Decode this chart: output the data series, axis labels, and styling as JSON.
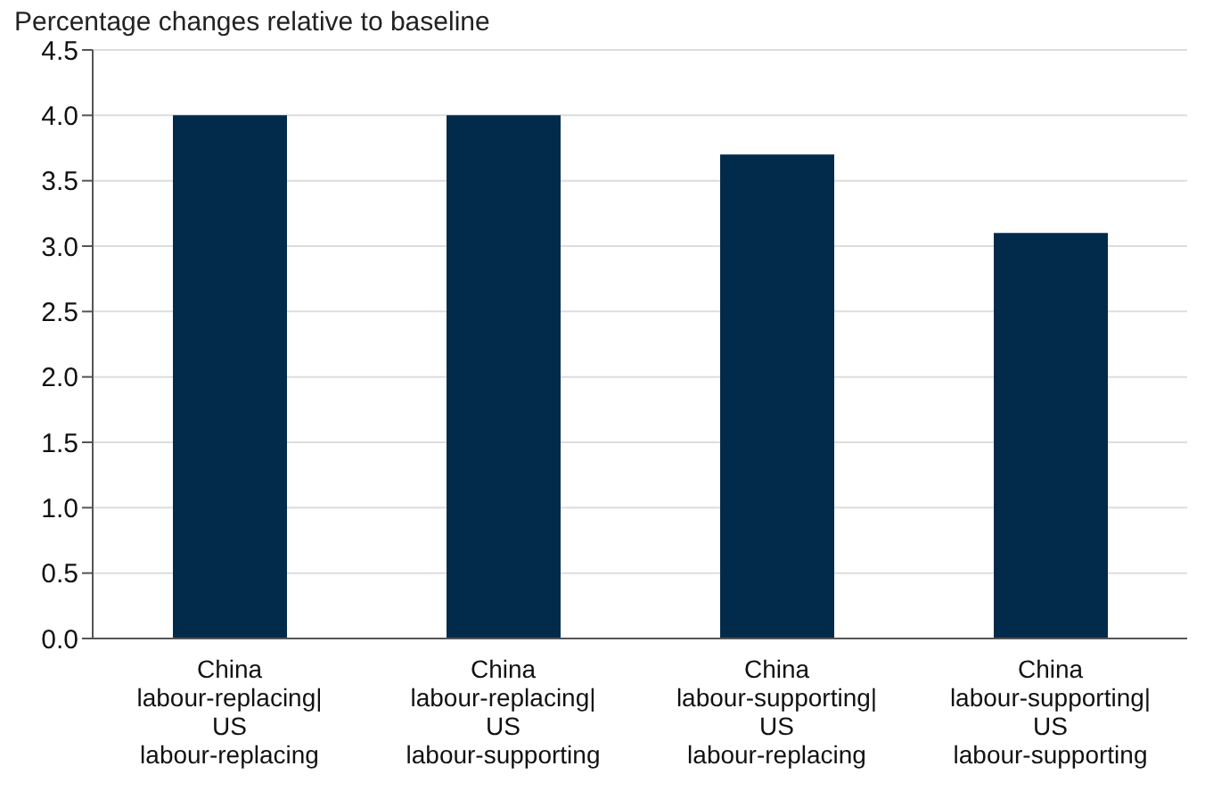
{
  "chart_data": {
    "type": "bar",
    "title": "Percentage changes relative to baseline",
    "categories": [
      "China\nlabour-replacing|\nUS\nlabour-replacing",
      "China\nlabour-replacing|\nUS\nlabour-supporting",
      "China\nlabour-supporting|\nUS\nlabour-replacing",
      "China\nlabour-supporting|\nUS\nlabour-supporting"
    ],
    "values": [
      4.0,
      4.0,
      3.7,
      3.1
    ],
    "color": "#022a4a",
    "ylim": [
      0,
      4.5
    ],
    "yticks": [
      {
        "value": 0,
        "label": "0.0"
      },
      0.5,
      {
        "value": 1,
        "label": "1.0"
      },
      1.5,
      {
        "value": 2,
        "label": "2.0"
      },
      2.5,
      {
        "value": 3,
        "label": "3.0"
      },
      3.5,
      {
        "value": 4,
        "label": "4.0"
      },
      4.5
    ],
    "grid": "y"
  }
}
